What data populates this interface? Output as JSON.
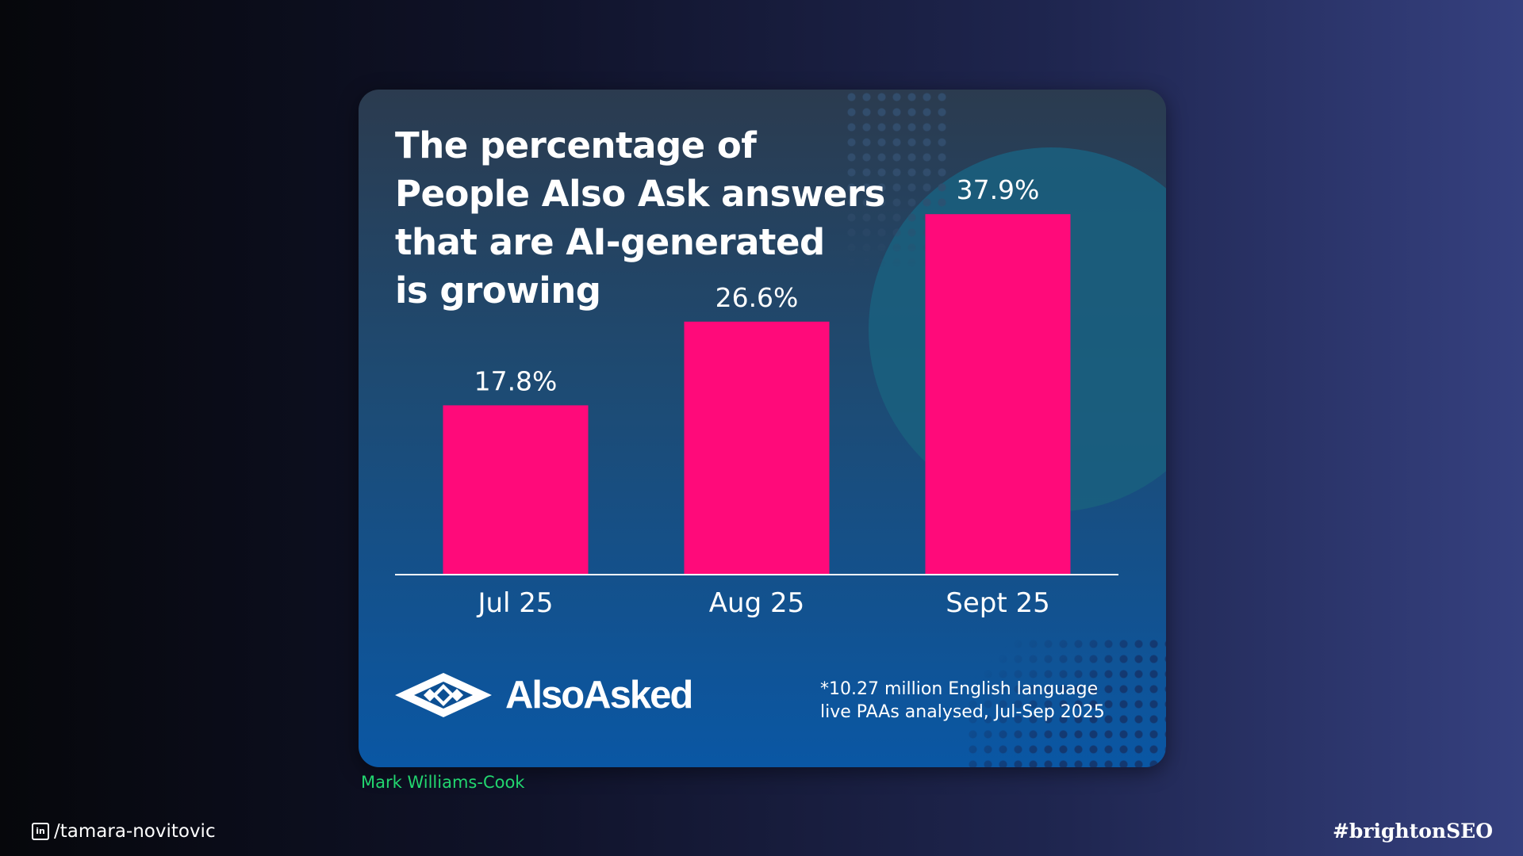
{
  "chart_data": {
    "type": "bar",
    "title_lines": [
      "The percentage of",
      "People Also Ask answers",
      "that are AI-generated",
      "is growing"
    ],
    "categories": [
      "Jul 25",
      "Aug 25",
      "Sept 25"
    ],
    "values": [
      17.8,
      26.6,
      37.9
    ],
    "data_labels": [
      "17.8%",
      "26.6%",
      "37.9%"
    ],
    "ylim": [
      0,
      40
    ],
    "grid": false,
    "bar_color": "#ff0a7a"
  },
  "brand": {
    "name": "AlsoAsked",
    "logo_icon": "alsoasked-logo-icon"
  },
  "footnote": {
    "lines": [
      "*10.27 million English language",
      "live PAAs analysed, Jul-Sep 2025"
    ]
  },
  "credit": "Mark Williams-Cook",
  "footer": {
    "linkedin_handle": "/tamara-novitovic",
    "linkedin_icon_glyph": "in",
    "hashtag": "#brightonSEO"
  },
  "colors": {
    "credit_green": "#22d66f",
    "card_top": "#2b3b4f",
    "card_bottom": "#0a57a4"
  }
}
